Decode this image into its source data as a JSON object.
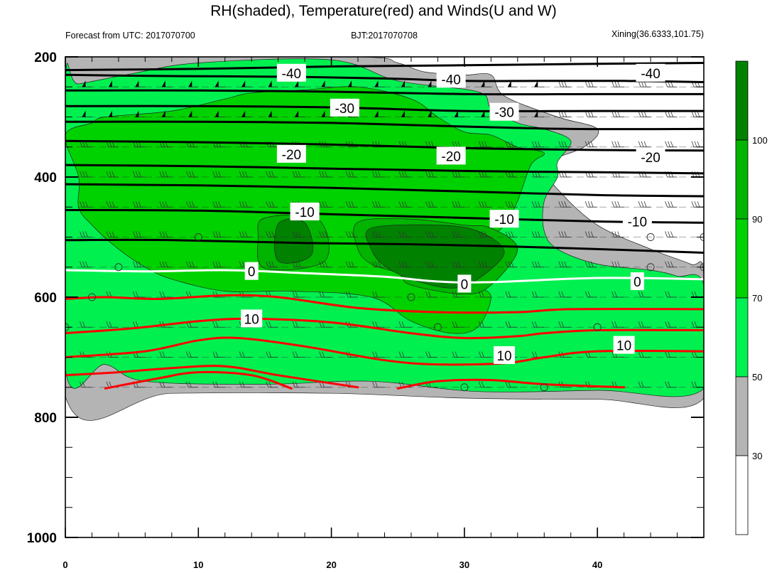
{
  "title": "RH(shaded), Temperature(red) and Winds(U and W)",
  "subtitle_left": "Forecast from UTC: 2017070700",
  "subtitle_center": "BJT:2017070708",
  "subtitle_right": "Xining(36.6333,101.75)",
  "colors": {
    "rh_below_30": "#ffffff",
    "rh_30_50": "#b4b4b4",
    "rh_50_70": "#00f050",
    "rh_70_90": "#00d200",
    "rh_90_100": "#00b400",
    "rh_above_100": "#008200",
    "temperature_negative": "#000000",
    "temperature_zero": "#ffffff",
    "temperature_positive": "#ff0000"
  },
  "chart_data": {
    "type": "heatmap",
    "description_free": true,
    "x_ticks": [
      "0",
      "10",
      "20",
      "30",
      "40"
    ],
    "x_range": [
      0,
      48
    ],
    "y_ticks": [
      "200",
      "400",
      "600",
      "800",
      "1000"
    ],
    "y_range": [
      200,
      1000
    ],
    "y_axis_inverted": true,
    "colorbar_ticks": [
      "30",
      "50",
      "70",
      "90",
      "100"
    ],
    "rh_levels": [
      30,
      50,
      70,
      90,
      100
    ],
    "rh_field": [
      {
        "level": 30,
        "polygon": [
          [
            0,
            765
          ],
          [
            8,
            760
          ],
          [
            20,
            760
          ],
          [
            30,
            768
          ],
          [
            40,
            770
          ],
          [
            48,
            768
          ],
          [
            48,
            560
          ],
          [
            47,
            545
          ],
          [
            44,
            520
          ],
          [
            40,
            480
          ],
          [
            37,
            420
          ],
          [
            36,
            380
          ],
          [
            39,
            350
          ],
          [
            40,
            320
          ],
          [
            37,
            300
          ],
          [
            33,
            265
          ],
          [
            32,
            230
          ],
          [
            30,
            230
          ],
          [
            27,
            225
          ],
          [
            25,
            210
          ],
          [
            22,
            200
          ],
          [
            5,
            200
          ],
          [
            0,
            200
          ]
        ]
      },
      {
        "level": 50,
        "polygon": [
          [
            0,
            720
          ],
          [
            3,
            712
          ],
          [
            6,
            740
          ],
          [
            15,
            745
          ],
          [
            23,
            740
          ],
          [
            31,
            757
          ],
          [
            40,
            755
          ],
          [
            48,
            752
          ],
          [
            48,
            580
          ],
          [
            46,
            565
          ],
          [
            44,
            555
          ],
          [
            40,
            545
          ],
          [
            37,
            520
          ],
          [
            36,
            490
          ],
          [
            36,
            440
          ],
          [
            37,
            400
          ],
          [
            37,
            375
          ],
          [
            38,
            340
          ],
          [
            36,
            320
          ],
          [
            34,
            310
          ],
          [
            32,
            285
          ],
          [
            31,
            258
          ],
          [
            25,
            240
          ],
          [
            20,
            205
          ],
          [
            10,
            210
          ],
          [
            5,
            228
          ],
          [
            1,
            245
          ],
          [
            0,
            245
          ]
        ]
      },
      {
        "level": 70,
        "polygon": [
          [
            0,
            330
          ],
          [
            2,
            310
          ],
          [
            3,
            300
          ],
          [
            8,
            290
          ],
          [
            12,
            270
          ],
          [
            14,
            260
          ],
          [
            18,
            255
          ],
          [
            22,
            250
          ],
          [
            26,
            270
          ],
          [
            28,
            300
          ],
          [
            30,
            325
          ],
          [
            32,
            330
          ],
          [
            34,
            350
          ],
          [
            36,
            360
          ],
          [
            35,
            380
          ],
          [
            34,
            440
          ],
          [
            33,
            480
          ],
          [
            31,
            520
          ],
          [
            30,
            545
          ],
          [
            31,
            580
          ],
          [
            32,
            600
          ],
          [
            31,
            650
          ],
          [
            29,
            660
          ],
          [
            26,
            640
          ],
          [
            23,
            600
          ],
          [
            17,
            590
          ],
          [
            12,
            590
          ],
          [
            8,
            570
          ],
          [
            6,
            550
          ],
          [
            4,
            520
          ],
          [
            2,
            480
          ],
          [
            1,
            450
          ],
          [
            1,
            400
          ]
        ]
      },
      {
        "level": 90,
        "polygon": [
          [
            15,
            468
          ],
          [
            19,
            470
          ],
          [
            19.5,
            540
          ],
          [
            15,
            552
          ],
          [
            14.5,
            500
          ]
        ]
      },
      {
        "level": 90,
        "polygon": [
          [
            22,
            475
          ],
          [
            26,
            470
          ],
          [
            30,
            480
          ],
          [
            32,
            485
          ],
          [
            34,
            520
          ],
          [
            32,
            580
          ],
          [
            30,
            595
          ],
          [
            26,
            580
          ],
          [
            25,
            560
          ],
          [
            23,
            545
          ],
          [
            22,
            520
          ]
        ]
      },
      {
        "level": 100,
        "polygon": [
          [
            16,
            478
          ],
          [
            18,
            476
          ],
          [
            18.5,
            530
          ],
          [
            16,
            540
          ]
        ]
      },
      {
        "level": 100,
        "polygon": [
          [
            23,
            485
          ],
          [
            28,
            480
          ],
          [
            31,
            490
          ],
          [
            33,
            525
          ],
          [
            31,
            570
          ],
          [
            29,
            585
          ],
          [
            26,
            570
          ],
          [
            24,
            548
          ],
          [
            23,
            520
          ]
        ]
      }
    ],
    "temperature_contours": [
      {
        "value": -40,
        "points": [
          [
            0,
            230
          ],
          [
            8,
            232
          ],
          [
            16,
            233
          ],
          [
            24,
            236
          ],
          [
            30,
            240
          ],
          [
            36,
            240
          ],
          [
            42,
            240
          ],
          [
            48,
            242
          ]
        ]
      },
      {
        "value": -40,
        "points": [
          [
            0,
            256
          ],
          [
            10,
            256
          ],
          [
            20,
            258
          ],
          [
            30,
            262
          ],
          [
            40,
            262
          ],
          [
            48,
            262
          ]
        ]
      },
      {
        "value": -40,
        "points": [
          [
            0,
            222
          ],
          [
            10,
            220
          ],
          [
            20,
            216
          ],
          [
            30,
            214
          ],
          [
            38,
            212
          ],
          [
            48,
            210
          ]
        ]
      },
      {
        "value": -30,
        "points": [
          [
            0,
            282
          ],
          [
            10,
            282
          ],
          [
            20,
            284
          ],
          [
            30,
            290
          ],
          [
            40,
            290
          ],
          [
            48,
            290
          ]
        ]
      },
      {
        "value": -30,
        "points": [
          [
            0,
            308
          ],
          [
            10,
            308
          ],
          [
            20,
            310
          ],
          [
            30,
            316
          ],
          [
            38,
            320
          ],
          [
            48,
            320
          ]
        ]
      },
      {
        "value": -20,
        "points": [
          [
            0,
            340
          ],
          [
            10,
            342
          ],
          [
            20,
            346
          ],
          [
            30,
            352
          ],
          [
            40,
            355
          ],
          [
            48,
            356
          ]
        ]
      },
      {
        "value": -20,
        "points": [
          [
            0,
            380
          ],
          [
            10,
            382
          ],
          [
            20,
            386
          ],
          [
            30,
            390
          ],
          [
            40,
            392
          ],
          [
            48,
            394
          ]
        ]
      },
      {
        "value": -20,
        "points": [
          [
            0,
            412
          ],
          [
            10,
            414
          ],
          [
            20,
            418
          ],
          [
            30,
            424
          ],
          [
            40,
            430
          ],
          [
            48,
            432
          ]
        ]
      },
      {
        "value": -10,
        "points": [
          [
            0,
            455
          ],
          [
            10,
            456
          ],
          [
            20,
            462
          ],
          [
            30,
            468
          ],
          [
            40,
            474
          ],
          [
            48,
            476
          ]
        ]
      },
      {
        "value": -10,
        "points": [
          [
            0,
            505
          ],
          [
            8,
            505
          ],
          [
            18,
            510
          ],
          [
            26,
            512
          ],
          [
            34,
            516
          ],
          [
            40,
            520
          ],
          [
            48,
            526
          ]
        ]
      },
      {
        "value": 0,
        "points": [
          [
            0,
            555
          ],
          [
            6,
            557
          ],
          [
            12,
            555
          ],
          [
            18,
            560
          ],
          [
            24,
            566
          ],
          [
            28,
            574
          ],
          [
            32,
            575
          ],
          [
            40,
            568
          ],
          [
            48,
            570
          ]
        ]
      },
      {
        "value": 10,
        "points": [
          [
            0,
            603
          ],
          [
            3,
            600
          ],
          [
            7,
            603
          ],
          [
            12,
            597
          ],
          [
            16,
            600
          ],
          [
            22,
            618
          ],
          [
            28,
            625
          ],
          [
            34,
            625
          ],
          [
            38,
            620
          ],
          [
            48,
            620
          ]
        ]
      },
      {
        "value": 10,
        "points": [
          [
            0,
            660
          ],
          [
            5,
            652
          ],
          [
            10,
            640
          ],
          [
            14,
            636
          ],
          [
            20,
            642
          ],
          [
            26,
            660
          ],
          [
            30,
            668
          ],
          [
            34,
            665
          ],
          [
            36,
            660
          ],
          [
            40,
            655
          ],
          [
            48,
            655
          ]
        ]
      },
      {
        "value": 10,
        "points": [
          [
            0,
            700
          ],
          [
            6,
            690
          ],
          [
            10,
            672
          ],
          [
            13,
            668
          ],
          [
            18,
            682
          ],
          [
            24,
            705
          ],
          [
            28,
            712
          ],
          [
            33,
            710
          ],
          [
            36,
            700
          ],
          [
            40,
            690
          ],
          [
            48,
            690
          ]
        ]
      },
      {
        "value": 10,
        "points": [
          [
            0,
            730
          ],
          [
            4,
            725
          ],
          [
            8,
            718
          ],
          [
            12,
            715
          ],
          [
            16,
            730
          ],
          [
            22,
            750
          ]
        ]
      },
      {
        "value": 10,
        "points": [
          [
            3,
            752
          ],
          [
            7,
            735
          ],
          [
            10,
            725
          ],
          [
            14,
            730
          ],
          [
            17,
            752
          ]
        ]
      },
      {
        "value": 10,
        "points": [
          [
            25,
            752
          ],
          [
            28,
            740
          ],
          [
            32,
            738
          ],
          [
            36,
            745
          ],
          [
            42,
            750
          ]
        ]
      }
    ],
    "contour_labels": [
      {
        "text": "-40",
        "x": 17,
        "y": 227
      },
      {
        "text": "-40",
        "x": 29,
        "y": 237
      },
      {
        "text": "-40",
        "x": 44,
        "y": 227
      },
      {
        "text": "-30",
        "x": 21,
        "y": 285
      },
      {
        "text": "-30",
        "x": 33,
        "y": 292
      },
      {
        "text": "-20",
        "x": 17,
        "y": 362
      },
      {
        "text": "-20",
        "x": 29,
        "y": 365
      },
      {
        "text": "-20",
        "x": 44,
        "y": 367
      },
      {
        "text": "-10",
        "x": 18,
        "y": 458
      },
      {
        "text": "-10",
        "x": 33,
        "y": 470
      },
      {
        "text": "-10",
        "x": 43,
        "y": 474
      },
      {
        "text": "0",
        "x": 14,
        "y": 557
      },
      {
        "text": "0",
        "x": 30,
        "y": 578
      },
      {
        "text": "0",
        "x": 43,
        "y": 574
      },
      {
        "text": "10",
        "x": 14,
        "y": 636
      },
      {
        "text": "10",
        "x": 33,
        "y": 697
      },
      {
        "text": "10",
        "x": 42,
        "y": 680
      }
    ],
    "wind_barb_levels": [
      250,
      300,
      350,
      400,
      450,
      500,
      550,
      600,
      650,
      700,
      750
    ],
    "wind_barb_times": [
      0,
      2,
      4,
      6,
      8,
      10,
      12,
      14,
      16,
      18,
      20,
      22,
      24,
      26,
      28,
      30,
      32,
      34,
      36,
      38,
      40,
      42,
      44,
      46,
      48
    ],
    "calm_points": [
      [
        10,
        500
      ],
      [
        4,
        550
      ],
      [
        2,
        600
      ],
      [
        0,
        650
      ],
      [
        26,
        600
      ],
      [
        28,
        650
      ],
      [
        30,
        750
      ],
      [
        36,
        750
      ],
      [
        40,
        650
      ],
      [
        44,
        500
      ],
      [
        44,
        550
      ],
      [
        48,
        500
      ],
      [
        48,
        550
      ]
    ]
  }
}
